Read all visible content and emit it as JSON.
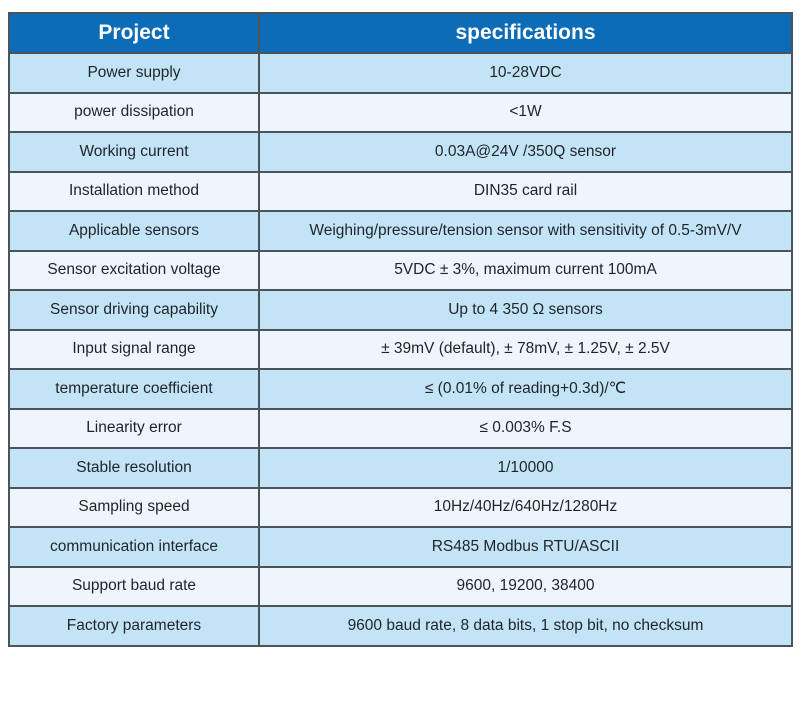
{
  "table": {
    "header": {
      "project": "Project",
      "specifications": "specifications"
    },
    "rows": [
      {
        "project": "Power supply",
        "spec": "10-28VDC"
      },
      {
        "project": "power dissipation",
        "spec": "<1W"
      },
      {
        "project": "Working current",
        "spec": "0.03A@24V /350Q sensor"
      },
      {
        "project": "Installation method",
        "spec": "DIN35 card rail"
      },
      {
        "project": "Applicable sensors",
        "spec": "Weighing/pressure/tension sensor with sensitivity of 0.5-3mV/V"
      },
      {
        "project": "Sensor excitation voltage",
        "spec": "5VDC ± 3%, maximum current 100mA"
      },
      {
        "project": "Sensor driving capability",
        "spec": "Up to 4 350 Ω sensors"
      },
      {
        "project": "Input signal range",
        "spec": "± 39mV (default), ± 78mV, ± 1.25V, ± 2.5V"
      },
      {
        "project": "temperature coefficient",
        "spec": "≤ (0.01% of reading+0.3d)/℃"
      },
      {
        "project": "Linearity error",
        "spec": "≤ 0.003% F.S"
      },
      {
        "project": "Stable resolution",
        "spec": "1/10000"
      },
      {
        "project": "Sampling speed",
        "spec": "10Hz/40Hz/640Hz/1280Hz"
      },
      {
        "project": "communication interface",
        "spec": "RS485 Modbus RTU/ASCII"
      },
      {
        "project": "Support baud rate",
        "spec": "9600, 19200, 38400"
      },
      {
        "project": "Factory parameters",
        "spec": "9600 baud rate, 8 data bits, 1 stop bit, no checksum"
      }
    ],
    "colors": {
      "header_bg": "#0d6cb7",
      "header_text": "#ffffff",
      "row_odd_bg": "#c3e4f7",
      "row_even_bg": "#eff5fc",
      "border": "#4a545a",
      "cell_text": "#1f2429"
    }
  }
}
